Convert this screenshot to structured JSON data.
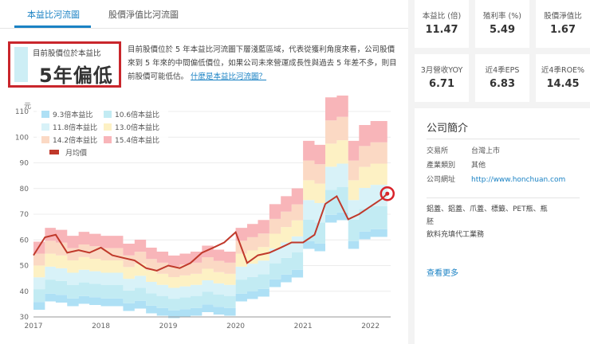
{
  "tabs": [
    {
      "label": "本益比河流圖"
    },
    {
      "label": "股價淨值比河流圖"
    }
  ],
  "valuation": {
    "subtitle": "目前股價位於本益比",
    "value": "5年偏低"
  },
  "description": {
    "text": "目前股價位於 5 年本益比河流圖下層淺藍區域，代表從獲利角度來看，公司股價來到 5 年來的中間偏低價位，如果公司未來營運成長性與過去 5 年差不多，則目前股價可能低估。",
    "link": "什麼是本益比河流圖？"
  },
  "stats": [
    {
      "label": "本益比 (倍)",
      "value": "11.47"
    },
    {
      "label": "殖利率 (%)",
      "value": "5.49"
    },
    {
      "label": "股價淨值比",
      "value": "1.67"
    },
    {
      "label": "3月營收YOY",
      "value": "6.71"
    },
    {
      "label": "近4季EPS",
      "value": "6.83"
    },
    {
      "label": "近4季ROE%",
      "value": "14.45"
    }
  ],
  "company": {
    "title": "公司簡介",
    "rows": [
      {
        "key": "交易所",
        "value": "台灣上市"
      },
      {
        "key": "產業類別",
        "value": "其他"
      },
      {
        "key": "公司網址",
        "value": "http://www.honchuan.com"
      }
    ],
    "business_lines": [
      "鋁蓋、鋁蓋、爪蓋、標籤、PET瓶、瓶",
      "胚",
      "飲料充填代工業務"
    ],
    "more": "查看更多"
  },
  "chart_data": {
    "type": "area",
    "ylabel": "元",
    "ylim": [
      30,
      110
    ],
    "yticks": [
      30,
      40,
      50,
      60,
      70,
      80,
      90,
      100,
      110
    ],
    "xticks": [
      "2017",
      "2018",
      "2019",
      "2020",
      "2021",
      "2022"
    ],
    "grid": true,
    "legend_position": "top-left",
    "colors": {
      "b1": "#aee0f5",
      "b2": "#c2ebf3",
      "b3": "#d8f2f8",
      "b4": "#fdf1c4",
      "b5": "#fbd9c4",
      "b6": "#f8b5b9",
      "price": "#c0392b",
      "marker": "#d9232a"
    },
    "series": [
      {
        "name": "9.3倍本益比",
        "color_key": "b1"
      },
      {
        "name": "10.6倍本益比",
        "color_key": "b2"
      },
      {
        "name": "11.8倍本益比",
        "color_key": "b3"
      },
      {
        "name": "13.0倍本益比",
        "color_key": "b4"
      },
      {
        "name": "14.2倍本益比",
        "color_key": "b5"
      },
      {
        "name": "15.4倍本益比",
        "color_key": "b6"
      },
      {
        "name": "月均價",
        "color_key": "price"
      }
    ],
    "x": [
      2017.0,
      2017.17,
      2017.33,
      2017.5,
      2017.67,
      2017.83,
      2018.0,
      2018.17,
      2018.33,
      2018.5,
      2018.67,
      2018.83,
      2019.0,
      2019.17,
      2019.33,
      2019.5,
      2019.67,
      2019.83,
      2020.0,
      2020.17,
      2020.33,
      2020.5,
      2020.67,
      2020.83,
      2021.0,
      2021.17,
      2021.33,
      2021.5,
      2021.67,
      2021.83,
      2022.0,
      2022.17,
      2022.25
    ],
    "eps": [
      3.85,
      4.2,
      4.15,
      4.0,
      4.1,
      4.05,
      4.0,
      4.0,
      3.8,
      3.9,
      3.7,
      3.6,
      3.5,
      3.55,
      3.6,
      3.75,
      3.65,
      3.6,
      4.2,
      4.3,
      4.4,
      4.8,
      5.0,
      5.2,
      6.4,
      6.3,
      7.5,
      7.6,
      6.4,
      6.8,
      6.9,
      6.9,
      6.85
    ],
    "price": [
      54,
      61,
      62,
      55,
      56,
      55,
      57,
      54,
      53,
      52,
      49,
      48,
      50,
      49,
      51,
      55,
      57,
      59,
      63,
      51,
      54,
      55,
      57,
      59,
      59,
      62,
      74,
      77,
      68,
      70,
      73,
      76,
      78
    ]
  }
}
